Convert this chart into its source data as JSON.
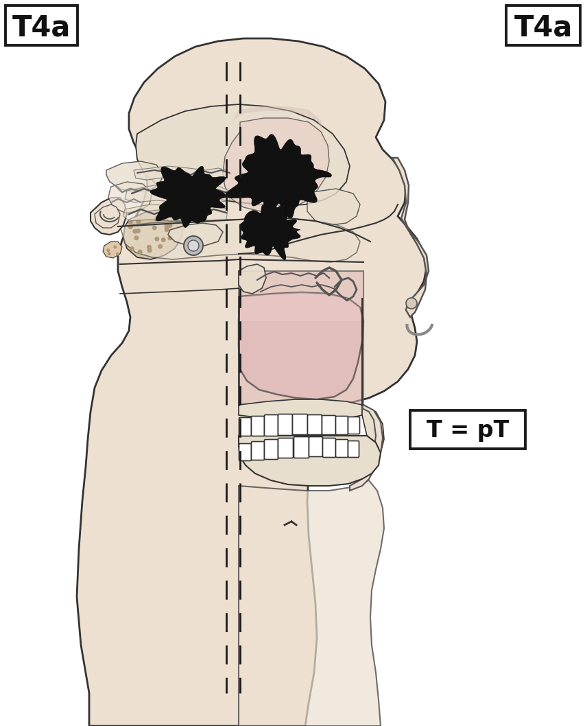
{
  "title_left": "T4a",
  "title_right": "T4a",
  "label_center": "T = pT",
  "background_color": "#ffffff",
  "skin_fill": "#ede0d0",
  "skin_edge": "#555555",
  "bone_fill": "#e8dece",
  "bone_edge": "#555555",
  "pink_fill": "#e0b8b8",
  "pink_light": "#ead0c8",
  "tumor_color": "#111111",
  "gray_dark": "#555555",
  "gray_mid": "#888888",
  "gray_light": "#bbbbbb",
  "mastoid_fill": "#d4c4a8",
  "mastoid_dot": "#b09878",
  "dashed_color": "#1a1a1a",
  "line_dark": "#333333",
  "line_light": "#666666",
  "white": "#ffffff",
  "label_border": "#1a1a1a"
}
